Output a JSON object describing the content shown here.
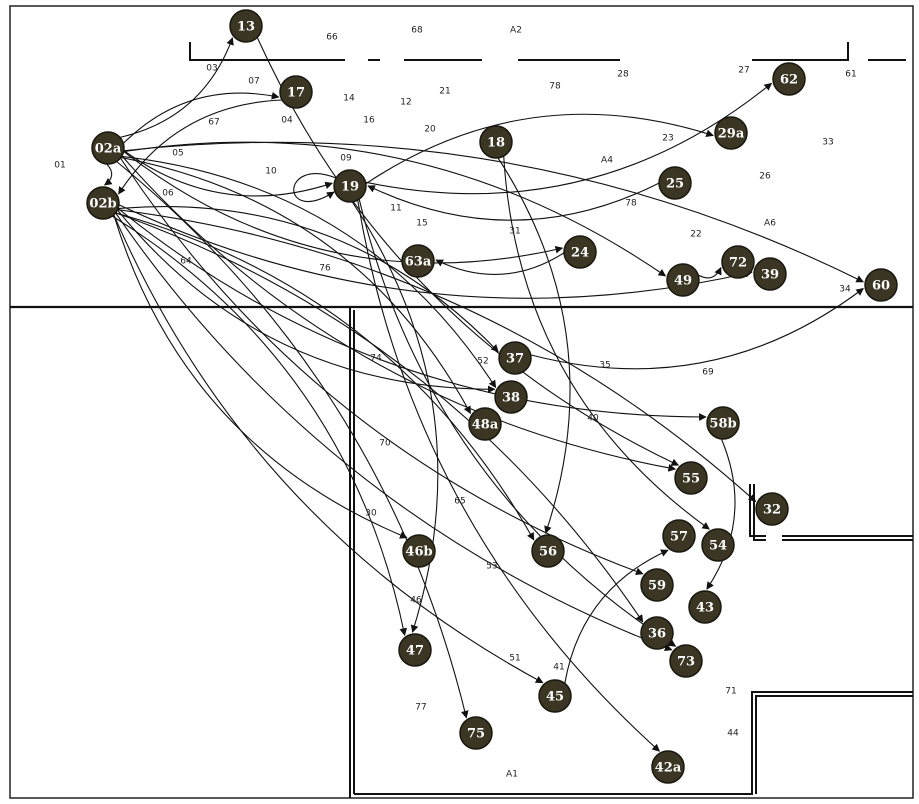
{
  "diagram": {
    "colors": {
      "node_fill": "#3b3523",
      "node_stroke": "#1a170e",
      "node_text": "#ffffff",
      "line": "#111111",
      "wall": "#111111",
      "label": "#222222"
    },
    "nodes": [
      {
        "id": "13",
        "label": "13"
      },
      {
        "id": "17",
        "label": "17"
      },
      {
        "id": "02a",
        "label": "02a"
      },
      {
        "id": "02b",
        "label": "02b"
      },
      {
        "id": "18",
        "label": "18"
      },
      {
        "id": "19",
        "label": "19"
      },
      {
        "id": "29a",
        "label": "29a"
      },
      {
        "id": "62",
        "label": "62"
      },
      {
        "id": "25",
        "label": "25"
      },
      {
        "id": "24",
        "label": "24"
      },
      {
        "id": "63a",
        "label": "63a"
      },
      {
        "id": "72",
        "label": "72"
      },
      {
        "id": "49",
        "label": "49"
      },
      {
        "id": "39",
        "label": "39"
      },
      {
        "id": "60",
        "label": "60"
      },
      {
        "id": "37",
        "label": "37"
      },
      {
        "id": "38",
        "label": "38"
      },
      {
        "id": "48a",
        "label": "48a"
      },
      {
        "id": "58b",
        "label": "58b"
      },
      {
        "id": "55",
        "label": "55"
      },
      {
        "id": "32",
        "label": "32"
      },
      {
        "id": "57",
        "label": "57"
      },
      {
        "id": "54",
        "label": "54"
      },
      {
        "id": "46b",
        "label": "46b"
      },
      {
        "id": "56",
        "label": "56"
      },
      {
        "id": "59",
        "label": "59"
      },
      {
        "id": "43",
        "label": "43"
      },
      {
        "id": "36",
        "label": "36"
      },
      {
        "id": "47",
        "label": "47"
      },
      {
        "id": "73",
        "label": "73"
      },
      {
        "id": "45",
        "label": "45"
      },
      {
        "id": "75",
        "label": "75"
      },
      {
        "id": "42a",
        "label": "42a"
      }
    ],
    "area_labels": [
      {
        "id": "66",
        "text": "66"
      },
      {
        "id": "68",
        "text": "68"
      },
      {
        "id": "A2",
        "text": "A2"
      },
      {
        "id": "03",
        "text": "03"
      },
      {
        "id": "07",
        "text": "07"
      },
      {
        "id": "28",
        "text": "28"
      },
      {
        "id": "78a",
        "text": "78"
      },
      {
        "id": "27",
        "text": "27"
      },
      {
        "id": "61",
        "text": "61"
      },
      {
        "id": "14",
        "text": "14"
      },
      {
        "id": "12",
        "text": "12"
      },
      {
        "id": "21",
        "text": "21"
      },
      {
        "id": "67",
        "text": "67"
      },
      {
        "id": "04",
        "text": "04"
      },
      {
        "id": "16",
        "text": "16"
      },
      {
        "id": "20",
        "text": "20"
      },
      {
        "id": "23",
        "text": "23"
      },
      {
        "id": "33",
        "text": "33"
      },
      {
        "id": "01",
        "text": "01"
      },
      {
        "id": "05",
        "text": "05"
      },
      {
        "id": "09",
        "text": "09"
      },
      {
        "id": "A4",
        "text": "A4"
      },
      {
        "id": "10",
        "text": "10"
      },
      {
        "id": "26",
        "text": "26"
      },
      {
        "id": "06",
        "text": "06"
      },
      {
        "id": "11",
        "text": "11"
      },
      {
        "id": "78b",
        "text": "78"
      },
      {
        "id": "15",
        "text": "15"
      },
      {
        "id": "A6",
        "text": "A6"
      },
      {
        "id": "31",
        "text": "31"
      },
      {
        "id": "22",
        "text": "22"
      },
      {
        "id": "64",
        "text": "64"
      },
      {
        "id": "76",
        "text": "76"
      },
      {
        "id": "34",
        "text": "34"
      },
      {
        "id": "74",
        "text": "74"
      },
      {
        "id": "52",
        "text": "52"
      },
      {
        "id": "35",
        "text": "35"
      },
      {
        "id": "69",
        "text": "69"
      },
      {
        "id": "40",
        "text": "40"
      },
      {
        "id": "70",
        "text": "70"
      },
      {
        "id": "65",
        "text": "65"
      },
      {
        "id": "30",
        "text": "30"
      },
      {
        "id": "53",
        "text": "53"
      },
      {
        "id": "46",
        "text": "46"
      },
      {
        "id": "51",
        "text": "51"
      },
      {
        "id": "41",
        "text": "41"
      },
      {
        "id": "71",
        "text": "71"
      },
      {
        "id": "77",
        "text": "77"
      },
      {
        "id": "44",
        "text": "44"
      },
      {
        "id": "A1",
        "text": "A1"
      }
    ],
    "edges": [
      [
        "02a",
        "13"
      ],
      [
        "02a",
        "17"
      ],
      [
        "02a",
        "19"
      ],
      [
        "02a",
        "02b"
      ],
      [
        "17",
        "02b"
      ],
      [
        "19",
        "29a"
      ],
      [
        "19",
        "62"
      ],
      [
        "25",
        "19"
      ],
      [
        "02a",
        "24"
      ],
      [
        "24",
        "63a"
      ],
      [
        "49",
        "72"
      ],
      [
        "02a",
        "49"
      ],
      [
        "02b",
        "39"
      ],
      [
        "02a",
        "60"
      ],
      [
        "13",
        "55"
      ],
      [
        "18",
        "56"
      ],
      [
        "18",
        "54"
      ],
      [
        "02b",
        "37"
      ],
      [
        "02b",
        "38"
      ],
      [
        "02a",
        "48a"
      ],
      [
        "02b",
        "58b"
      ],
      [
        "58b",
        "43"
      ],
      [
        "02a",
        "55"
      ],
      [
        "02b",
        "32"
      ],
      [
        "02b",
        "46b"
      ],
      [
        "02b",
        "56"
      ],
      [
        "02a",
        "59"
      ],
      [
        "02b",
        "36"
      ],
      [
        "02b",
        "73"
      ],
      [
        "19",
        "47"
      ],
      [
        "02b",
        "45"
      ],
      [
        "02a",
        "75"
      ],
      [
        "19",
        "42a"
      ],
      [
        "45",
        "57"
      ],
      [
        "19",
        "73"
      ],
      [
        "02b",
        "47"
      ],
      [
        "37",
        "60"
      ],
      [
        "02a",
        "38"
      ],
      [
        "19",
        "19"
      ]
    ]
  }
}
